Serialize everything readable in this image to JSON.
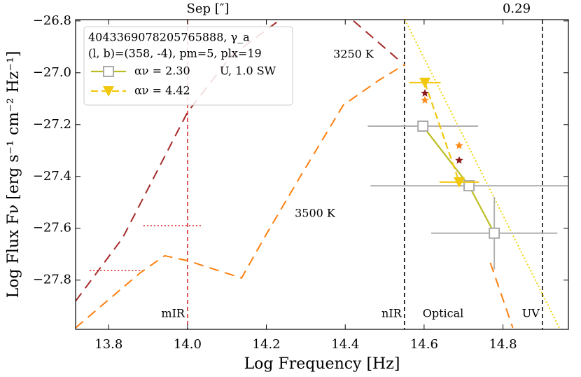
{
  "chart_data": {
    "type": "line",
    "xlabel": "Log Frequency [Hz]",
    "ylabel": "Log Flux Fν [erg s⁻¹ cm⁻² Hz⁻¹]",
    "top_axis_label": "Sep [″]",
    "top_value_label": "0.29",
    "top_value_color": "#c49a00",
    "xlim": [
      13.716,
      14.966
    ],
    "ylim": [
      -27.99,
      -26.795
    ],
    "xticks": [
      13.8,
      {
        "value": 14,
        "label": "14.0"
      },
      14.2,
      14.4,
      14.6,
      14.8
    ],
    "yticks": [
      {
        "value": -26.8,
        "label": "−26.8"
      },
      {
        "value": -27,
        "label": "−27.0"
      },
      {
        "value": -27.2,
        "label": "−27.2"
      },
      {
        "value": -27.4,
        "label": "−27.4"
      },
      {
        "value": -27.6,
        "label": "−27.6"
      },
      {
        "value": -27.8,
        "label": "−27.8"
      }
    ],
    "legend_lines": [
      "4043369078205765888, γ_a",
      "(l, b)=(358, -4), pm=5, plx=19"
    ],
    "curves": [
      {
        "name": "3250 K",
        "color": "#a52a2a",
        "x": [
          13.716,
          13.835,
          14.0,
          14.11,
          14.235,
          null,
          14.421,
          14.545
        ],
        "y": [
          -27.881,
          -27.638,
          -27.152,
          -26.936,
          -26.795,
          null,
          -26.8,
          -26.963
        ]
      },
      {
        "name": "3500 K",
        "color": "#ff7f0e",
        "x": [
          13.716,
          13.879,
          13.942,
          14.0,
          14.137,
          14.199,
          14.288,
          14.395,
          14.484,
          14.551,
          null,
          14.768,
          14.825
        ],
        "y": [
          -27.984,
          -27.773,
          -27.706,
          -27.725,
          -27.792,
          -27.625,
          -27.395,
          -27.125,
          -27.03,
          -26.968,
          null,
          -27.733,
          -27.984
        ]
      }
    ],
    "series": [
      {
        "name": "αν =  2.30",
        "note": "U, 1.0 SW",
        "color": "#bcbd22",
        "marker_color": "#aaaaaa",
        "marker": "square",
        "dashed": false,
        "x": [
          14.597,
          14.714,
          14.778
        ],
        "values": [
          -27.206,
          -27.436,
          -27.619
        ],
        "xerr": [
          0.14,
          0.25,
          0.16
        ],
        "yerr": [
          0,
          0,
          0.14
        ]
      },
      {
        "name": "αν =  4.42",
        "color": "#f2c80f",
        "marker_color": "#f2c80f",
        "marker": "triangle",
        "dashed": true,
        "x": [
          14.602,
          14.689
        ],
        "values": [
          -27.038,
          -27.422
        ],
        "xerr": [
          0.04,
          0.05
        ],
        "yerr": [
          0,
          0
        ]
      }
    ],
    "fit_line": {
      "color": "#f2d30f",
      "x": [
        14.551,
        14.945
      ],
      "y": [
        -26.795,
        -27.99
      ]
    },
    "stars": [
      {
        "color": "#8b1a1a",
        "x": [
          14.602,
          14.689
        ],
        "y": [
          -27.079,
          -27.338
        ]
      },
      {
        "color": "#ff8c1a",
        "x": [
          14.602,
          14.689
        ],
        "y": [
          -27.106,
          -27.281
        ]
      }
    ],
    "vlines": [
      {
        "x": 14,
        "label": "mIR",
        "color": "#d62728"
      },
      {
        "x": 14.55,
        "label": "nIR",
        "color": "#000000"
      },
      {
        "x": 14.9,
        "label": "UV",
        "color": "#000000"
      }
    ],
    "region_label": "Optical",
    "dotted_segments": [
      {
        "color": "#d62728",
        "x": [
          13.888,
          14.039
        ],
        "y": -27.59
      },
      {
        "color": "#d62728",
        "x": [
          13.752,
          13.888
        ],
        "y": -27.763
      }
    ]
  }
}
